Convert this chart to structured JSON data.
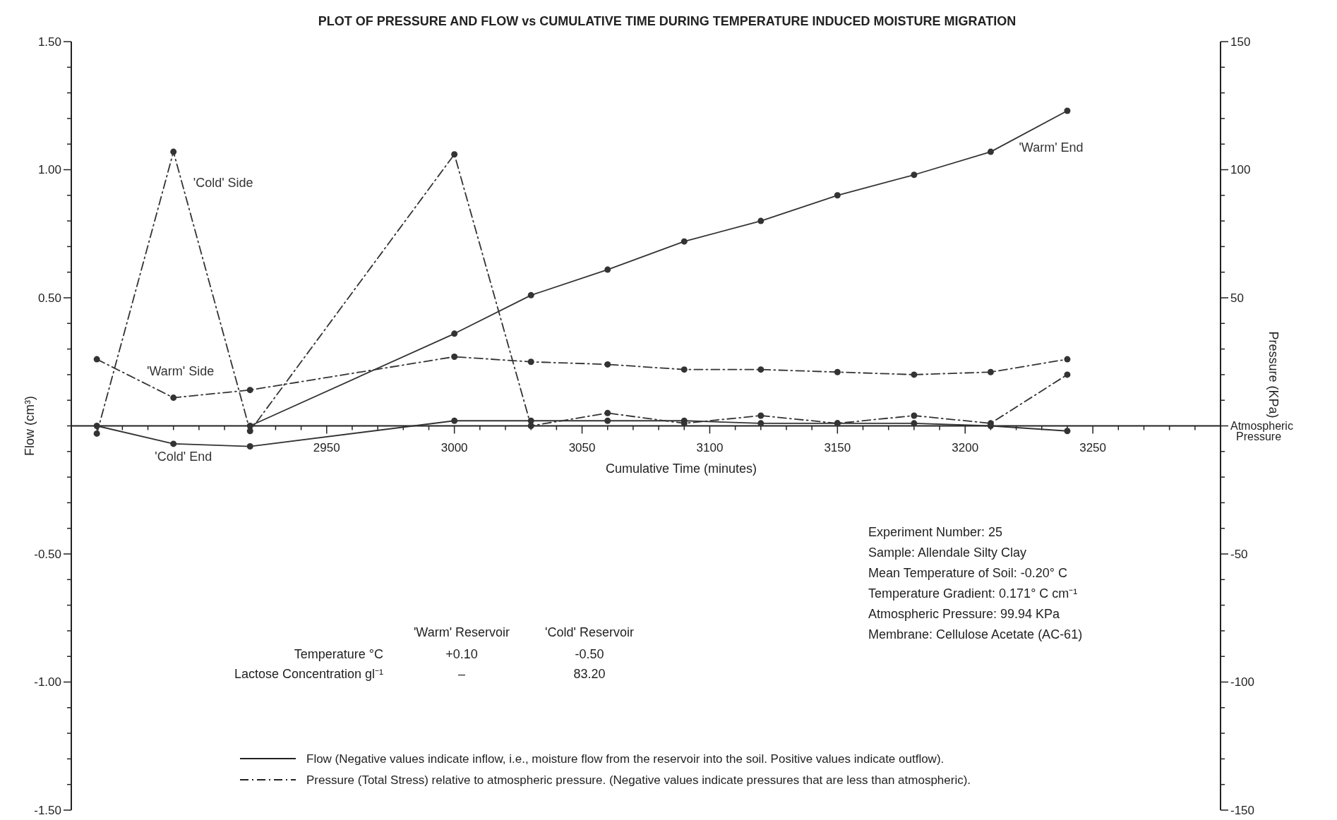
{
  "chart_data": {
    "type": "line",
    "title": "PLOT OF PRESSURE AND FLOW vs CUMULATIVE TIME DURING TEMPERATURE INDUCED MOISTURE MIGRATION",
    "xlabel": "Cumulative Time (minutes)",
    "ylabel": "Flow (cm³)",
    "y2label": "Pressure (KPa)",
    "xlim": [
      2850,
      3300
    ],
    "xticks": [
      {
        "value": 2860,
        "label": null
      },
      {
        "value": 2870,
        "label": null
      },
      {
        "value": 2880,
        "label": null
      },
      {
        "value": 2890,
        "label": null
      },
      {
        "value": 2900,
        "label": null
      },
      {
        "value": 2910,
        "label": null
      },
      {
        "value": 2920,
        "label": null
      },
      {
        "value": 2930,
        "label": null
      },
      {
        "value": 2940,
        "label": null
      },
      2950,
      {
        "value": 2960,
        "label": null
      },
      {
        "value": 2970,
        "label": null
      },
      {
        "value": 2980,
        "label": null
      },
      {
        "value": 2990,
        "label": null
      },
      3000,
      {
        "value": 3010,
        "label": null
      },
      {
        "value": 3020,
        "label": null
      },
      {
        "value": 3030,
        "label": null
      },
      {
        "value": 3040,
        "label": null
      },
      3050,
      {
        "value": 3060,
        "label": null
      },
      {
        "value": 3070,
        "label": null
      },
      {
        "value": 3080,
        "label": null
      },
      {
        "value": 3090,
        "label": null
      },
      3100,
      {
        "value": 3110,
        "label": null
      },
      {
        "value": 3120,
        "label": null
      },
      {
        "value": 3130,
        "label": null
      },
      {
        "value": 3140,
        "label": null
      },
      3150,
      {
        "value": 3160,
        "label": null
      },
      {
        "value": 3170,
        "label": null
      },
      {
        "value": 3180,
        "label": null
      },
      {
        "value": 3190,
        "label": null
      },
      3200,
      {
        "value": 3210,
        "label": null
      },
      {
        "value": 3220,
        "label": null
      },
      {
        "value": 3230,
        "label": null
      },
      {
        "value": 3240,
        "label": null
      },
      3250,
      {
        "value": 3260,
        "label": null
      },
      {
        "value": 3270,
        "label": null
      },
      {
        "value": 3280,
        "label": null
      },
      {
        "value": 3290,
        "label": null
      }
    ],
    "ylim": [
      -1.5,
      1.5
    ],
    "yticks": [
      {
        "value": -1.5,
        "label": "-1.50"
      },
      {
        "value": -1.4,
        "label": null
      },
      {
        "value": -1.3,
        "label": null
      },
      {
        "value": -1.2,
        "label": null
      },
      {
        "value": -1.1,
        "label": null
      },
      {
        "value": -1.0,
        "label": "-1.00"
      },
      {
        "value": -0.9,
        "label": null
      },
      {
        "value": -0.8,
        "label": null
      },
      {
        "value": -0.7,
        "label": null
      },
      {
        "value": -0.6,
        "label": null
      },
      {
        "value": -0.5,
        "label": "-0.50"
      },
      {
        "value": -0.4,
        "label": null
      },
      {
        "value": -0.3,
        "label": null
      },
      {
        "value": -0.2,
        "label": null
      },
      {
        "value": -0.1,
        "label": null
      },
      {
        "value": 0,
        "label": null
      },
      {
        "value": 0.1,
        "label": null
      },
      {
        "value": 0.2,
        "label": null
      },
      {
        "value": 0.3,
        "label": null
      },
      {
        "value": 0.4,
        "label": null
      },
      {
        "value": 0.5,
        "label": "0.50"
      },
      {
        "value": 0.6,
        "label": null
      },
      {
        "value": 0.7,
        "label": null
      },
      {
        "value": 0.8,
        "label": null
      },
      {
        "value": 0.9,
        "label": null
      },
      {
        "value": 1.0,
        "label": "1.00"
      },
      {
        "value": 1.1,
        "label": null
      },
      {
        "value": 1.2,
        "label": null
      },
      {
        "value": 1.3,
        "label": null
      },
      {
        "value": 1.4,
        "label": null
      },
      {
        "value": 1.5,
        "label": "1.50"
      }
    ],
    "y2lim": [
      -150,
      150
    ],
    "y2ticks": [
      -150,
      {
        "value": -140,
        "label": null
      },
      {
        "value": -130,
        "label": null
      },
      {
        "value": -120,
        "label": null
      },
      {
        "value": -110,
        "label": null
      },
      -100,
      {
        "value": -90,
        "label": null
      },
      {
        "value": -80,
        "label": null
      },
      {
        "value": -70,
        "label": null
      },
      {
        "value": -60,
        "label": null
      },
      -50,
      {
        "value": -40,
        "label": null
      },
      {
        "value": -30,
        "label": null
      },
      {
        "value": -20,
        "label": null
      },
      {
        "value": -10,
        "label": null
      },
      {
        "value": 0,
        "label": "Atmospheric Pressure"
      },
      {
        "value": 10,
        "label": null
      },
      {
        "value": 20,
        "label": null
      },
      {
        "value": 30,
        "label": null
      },
      {
        "value": 40,
        "label": null
      },
      50,
      {
        "value": 60,
        "label": null
      },
      {
        "value": 70,
        "label": null
      },
      {
        "value": 80,
        "label": null
      },
      {
        "value": 90,
        "label": null
      },
      100,
      {
        "value": 110,
        "label": null
      },
      {
        "value": 120,
        "label": null
      },
      {
        "value": 130,
        "label": null
      },
      {
        "value": 140,
        "label": null
      },
      150
    ],
    "marker": "circle",
    "series": [
      {
        "name": "'Warm' End",
        "color": "#333333",
        "line_style": "solid",
        "x": [
          2920,
          3000,
          3030,
          3060,
          3090,
          3120,
          3150,
          3180,
          3210,
          3240
        ],
        "values": [
          0,
          0.36,
          0.51,
          0.61,
          0.72,
          0.8,
          0.9,
          0.98,
          1.07,
          1.23
        ]
      },
      {
        "name": "'Cold' End",
        "color": "#333333",
        "line_style": "solid",
        "x": [
          2860,
          2890,
          2920,
          3000,
          3030,
          3060,
          3090,
          3120,
          3150,
          3180,
          3210,
          3240
        ],
        "values": [
          0,
          -0.07,
          -0.08,
          0.02,
          0.02,
          0.02,
          0.02,
          0.01,
          0.01,
          0.01,
          0,
          -0.02
        ]
      },
      {
        "name": "'Cold' Side",
        "color": "#333333",
        "line_style": "dashdot",
        "axis": "y2",
        "x": [
          2860,
          2890,
          2920,
          3000,
          3030,
          3060,
          3090,
          3120,
          3150,
          3180,
          3210,
          3240
        ],
        "values": [
          -3,
          107,
          -2,
          106,
          0,
          5,
          1,
          4,
          1,
          4,
          1,
          20
        ]
      },
      {
        "name": "'Warm' Side",
        "color": "#333333",
        "line_style": "dashdot",
        "axis": "y2",
        "x": [
          2860,
          2890,
          2920,
          3000,
          3030,
          3060,
          3090,
          3120,
          3150,
          3180,
          3210,
          3240
        ],
        "values": [
          26,
          11,
          14,
          27,
          25,
          24,
          22,
          22,
          21,
          20,
          21,
          26
        ]
      }
    ],
    "annotations": [
      "'Warm' Reservoir",
      "'Cold' Reservoir",
      "Temperature °C",
      "+0.10",
      "-0.50",
      "Lactose Concentration gl⁻¹",
      "–",
      "83.20",
      "Experiment Number: 25",
      "Sample: Allendale Silty Clay",
      "Mean Temperature of Soil: -0.20° C",
      "Temperature Gradient: 0.171° C cm⁻¹",
      "Atmospheric Pressure: 99.94 KPa",
      "Membrane: Cellulose Acetate (AC-61)",
      "Flow  (Negative values indicate inflow, i.e., moisture flow from the reservoir into the soil. Positive values indicate outflow).",
      "Pressure  (Total Stress) relative to atmospheric pressure. (Negative values indicate pressures that are less than atmospheric)."
    ]
  }
}
